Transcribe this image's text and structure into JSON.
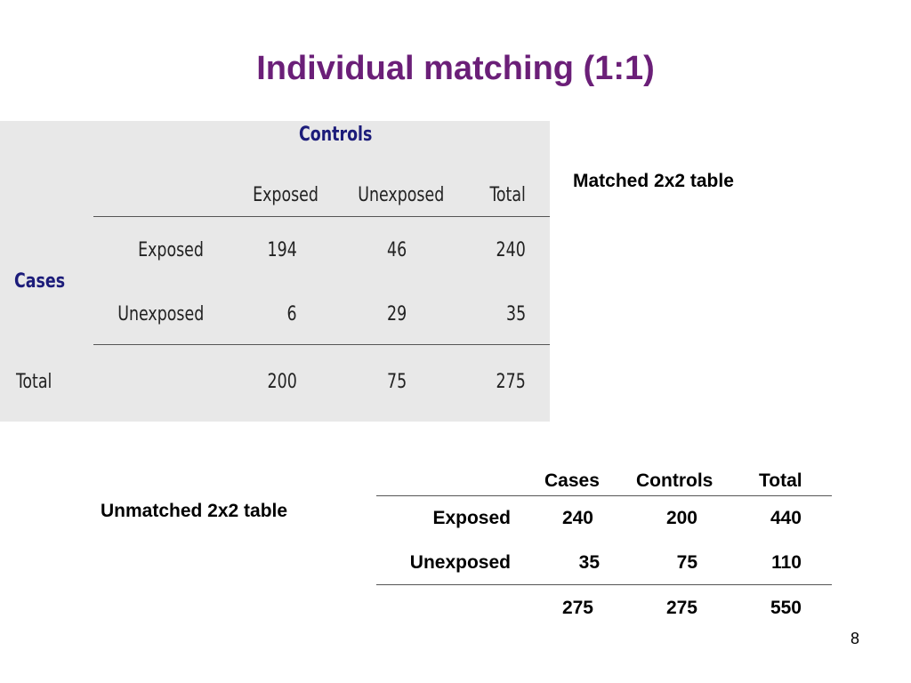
{
  "slide": {
    "title": "Individual matching (1:1)",
    "page_number": "8"
  },
  "matched_table": {
    "label": "Matched 2x2 table",
    "controls_header": "Controls",
    "cases_header": "Cases",
    "columns": [
      "Exposed",
      "Unexposed",
      "Total"
    ],
    "rows": [
      {
        "label": "Exposed",
        "values": [
          "194",
          "46",
          "240"
        ]
      },
      {
        "label": "Unexposed",
        "values": [
          "6",
          "29",
          "35"
        ]
      }
    ],
    "total_row": {
      "label": "Total",
      "values": [
        "200",
        "75",
        "275"
      ]
    }
  },
  "unmatched_table": {
    "label": "Unmatched 2x2 table",
    "columns": [
      "Cases",
      "Controls",
      "Total"
    ],
    "rows": [
      {
        "label": "Exposed",
        "values": [
          "240",
          "200",
          "440"
        ]
      },
      {
        "label": "Unexposed",
        "values": [
          "35",
          "75",
          "110"
        ]
      }
    ],
    "total_row": {
      "label": "",
      "values": [
        "275",
        "275",
        "550"
      ]
    }
  },
  "colors": {
    "title": "#6b1f78",
    "header_blue": "#1c1c7a",
    "panel_bg": "#e8e8e8"
  }
}
